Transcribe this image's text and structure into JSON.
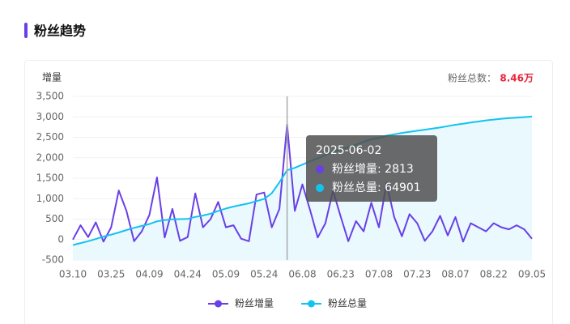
{
  "header": {
    "title": "粉丝趋势"
  },
  "chart_data": {
    "type": "line",
    "y_label": "增量",
    "total_label": "粉丝总数：",
    "total_value": "8.46万",
    "categories": [
      "03.10",
      null,
      null,
      null,
      null,
      "03.25",
      null,
      null,
      null,
      null,
      "04.09",
      null,
      null,
      null,
      null,
      "04.24",
      null,
      null,
      null,
      null,
      "05.09",
      null,
      null,
      null,
      null,
      "05.24",
      null,
      null,
      null,
      null,
      "06.08",
      null,
      null,
      null,
      null,
      "06.23",
      null,
      null,
      null,
      null,
      "07.08",
      null,
      null,
      null,
      null,
      "07.23",
      null,
      null,
      null,
      null,
      "08.07",
      null,
      null,
      null,
      null,
      "08.22",
      null,
      null,
      null,
      null,
      "09.05"
    ],
    "series": [
      {
        "name": "粉丝增量",
        "color": "#6a3fe6",
        "values": [
          0,
          350,
          60,
          420,
          -50,
          300,
          1200,
          700,
          -40,
          200,
          600,
          1520,
          50,
          750,
          -30,
          60,
          1130,
          300,
          500,
          920,
          300,
          350,
          20,
          -40,
          1100,
          1150,
          300,
          750,
          2813,
          700,
          1350,
          720,
          50,
          400,
          1200,
          560,
          -40,
          450,
          200,
          900,
          300,
          1380,
          550,
          80,
          620,
          400,
          -30,
          200,
          580,
          100,
          550,
          -50,
          400,
          300,
          200,
          400,
          300,
          250,
          350,
          250,
          20
        ]
      },
      {
        "name": "粉丝总量",
        "color": "#12c3f0",
        "axis": "y2",
        "area_color": "#e9f9fe",
        "values": [
          37500,
          38200,
          38900,
          39700,
          40600,
          41300,
          42100,
          43000,
          43800,
          44500,
          45200,
          46200,
          46600,
          46900,
          47000,
          47100,
          47800,
          48300,
          49000,
          50000,
          50900,
          51600,
          52200,
          52800,
          53600,
          54400,
          56500,
          60500,
          64901,
          65800,
          67000,
          68200,
          69300,
          70500,
          71800,
          72600,
          73300,
          74300,
          75300,
          76300,
          76800,
          77600,
          78100,
          78600,
          79000,
          79400,
          79800,
          80200,
          80600,
          81100,
          81600,
          82000,
          82400,
          82800,
          83200,
          83500,
          83800,
          84000,
          84200,
          84400,
          84600
        ]
      }
    ],
    "ylim": [
      -500,
      3500
    ],
    "yticks": [
      {
        "value": -500,
        "label": "-500"
      },
      0,
      500,
      {
        "value": 1000,
        "label": "1,000"
      },
      {
        "value": 1500,
        "label": "1,500"
      },
      {
        "value": 2000,
        "label": "2,000"
      },
      {
        "value": 2500,
        "label": "2,500"
      },
      {
        "value": 3000,
        "label": "3,000"
      },
      {
        "value": 3500,
        "label": "3,500"
      }
    ],
    "y2lim": [
      32000,
      92000
    ],
    "grid": true,
    "legend": "bottom",
    "tooltip": {
      "date": "2025-06-02"
    }
  }
}
